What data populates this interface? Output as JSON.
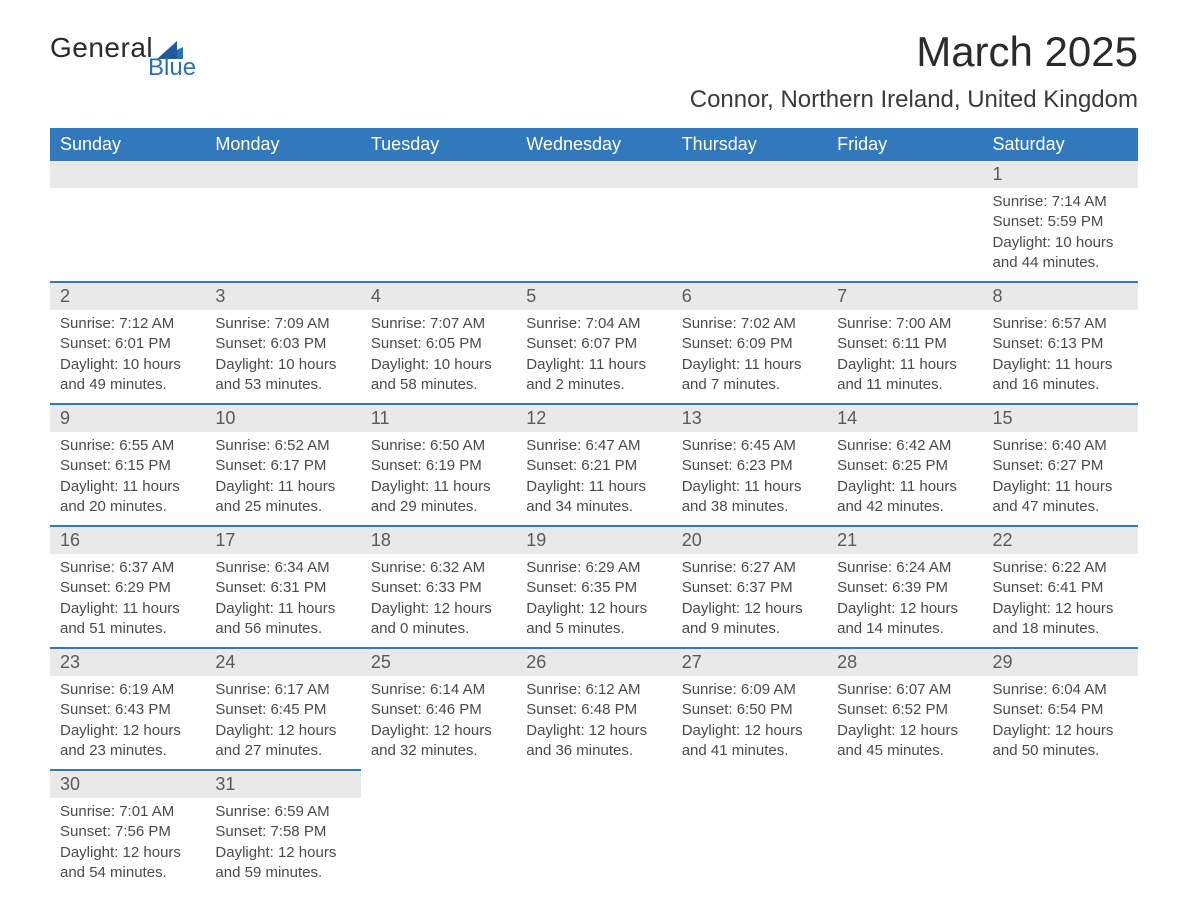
{
  "brand": {
    "name1": "General",
    "name2": "Blue",
    "logo_color": "#2b6fb5"
  },
  "header": {
    "month_title": "March 2025",
    "location": "Connor, Northern Ireland, United Kingdom"
  },
  "colors": {
    "header_bg": "#3278bc",
    "daynum_bg": "#e9e9e9",
    "row_divider": "#3278bc"
  },
  "day_headers": [
    "Sunday",
    "Monday",
    "Tuesday",
    "Wednesday",
    "Thursday",
    "Friday",
    "Saturday"
  ],
  "weeks": [
    [
      null,
      null,
      null,
      null,
      null,
      null,
      {
        "day": "1",
        "sunrise": "Sunrise: 7:14 AM",
        "sunset": "Sunset: 5:59 PM",
        "daylight": "Daylight: 10 hours and 44 minutes."
      }
    ],
    [
      {
        "day": "2",
        "sunrise": "Sunrise: 7:12 AM",
        "sunset": "Sunset: 6:01 PM",
        "daylight": "Daylight: 10 hours and 49 minutes."
      },
      {
        "day": "3",
        "sunrise": "Sunrise: 7:09 AM",
        "sunset": "Sunset: 6:03 PM",
        "daylight": "Daylight: 10 hours and 53 minutes."
      },
      {
        "day": "4",
        "sunrise": "Sunrise: 7:07 AM",
        "sunset": "Sunset: 6:05 PM",
        "daylight": "Daylight: 10 hours and 58 minutes."
      },
      {
        "day": "5",
        "sunrise": "Sunrise: 7:04 AM",
        "sunset": "Sunset: 6:07 PM",
        "daylight": "Daylight: 11 hours and 2 minutes."
      },
      {
        "day": "6",
        "sunrise": "Sunrise: 7:02 AM",
        "sunset": "Sunset: 6:09 PM",
        "daylight": "Daylight: 11 hours and 7 minutes."
      },
      {
        "day": "7",
        "sunrise": "Sunrise: 7:00 AM",
        "sunset": "Sunset: 6:11 PM",
        "daylight": "Daylight: 11 hours and 11 minutes."
      },
      {
        "day": "8",
        "sunrise": "Sunrise: 6:57 AM",
        "sunset": "Sunset: 6:13 PM",
        "daylight": "Daylight: 11 hours and 16 minutes."
      }
    ],
    [
      {
        "day": "9",
        "sunrise": "Sunrise: 6:55 AM",
        "sunset": "Sunset: 6:15 PM",
        "daylight": "Daylight: 11 hours and 20 minutes."
      },
      {
        "day": "10",
        "sunrise": "Sunrise: 6:52 AM",
        "sunset": "Sunset: 6:17 PM",
        "daylight": "Daylight: 11 hours and 25 minutes."
      },
      {
        "day": "11",
        "sunrise": "Sunrise: 6:50 AM",
        "sunset": "Sunset: 6:19 PM",
        "daylight": "Daylight: 11 hours and 29 minutes."
      },
      {
        "day": "12",
        "sunrise": "Sunrise: 6:47 AM",
        "sunset": "Sunset: 6:21 PM",
        "daylight": "Daylight: 11 hours and 34 minutes."
      },
      {
        "day": "13",
        "sunrise": "Sunrise: 6:45 AM",
        "sunset": "Sunset: 6:23 PM",
        "daylight": "Daylight: 11 hours and 38 minutes."
      },
      {
        "day": "14",
        "sunrise": "Sunrise: 6:42 AM",
        "sunset": "Sunset: 6:25 PM",
        "daylight": "Daylight: 11 hours and 42 minutes."
      },
      {
        "day": "15",
        "sunrise": "Sunrise: 6:40 AM",
        "sunset": "Sunset: 6:27 PM",
        "daylight": "Daylight: 11 hours and 47 minutes."
      }
    ],
    [
      {
        "day": "16",
        "sunrise": "Sunrise: 6:37 AM",
        "sunset": "Sunset: 6:29 PM",
        "daylight": "Daylight: 11 hours and 51 minutes."
      },
      {
        "day": "17",
        "sunrise": "Sunrise: 6:34 AM",
        "sunset": "Sunset: 6:31 PM",
        "daylight": "Daylight: 11 hours and 56 minutes."
      },
      {
        "day": "18",
        "sunrise": "Sunrise: 6:32 AM",
        "sunset": "Sunset: 6:33 PM",
        "daylight": "Daylight: 12 hours and 0 minutes."
      },
      {
        "day": "19",
        "sunrise": "Sunrise: 6:29 AM",
        "sunset": "Sunset: 6:35 PM",
        "daylight": "Daylight: 12 hours and 5 minutes."
      },
      {
        "day": "20",
        "sunrise": "Sunrise: 6:27 AM",
        "sunset": "Sunset: 6:37 PM",
        "daylight": "Daylight: 12 hours and 9 minutes."
      },
      {
        "day": "21",
        "sunrise": "Sunrise: 6:24 AM",
        "sunset": "Sunset: 6:39 PM",
        "daylight": "Daylight: 12 hours and 14 minutes."
      },
      {
        "day": "22",
        "sunrise": "Sunrise: 6:22 AM",
        "sunset": "Sunset: 6:41 PM",
        "daylight": "Daylight: 12 hours and 18 minutes."
      }
    ],
    [
      {
        "day": "23",
        "sunrise": "Sunrise: 6:19 AM",
        "sunset": "Sunset: 6:43 PM",
        "daylight": "Daylight: 12 hours and 23 minutes."
      },
      {
        "day": "24",
        "sunrise": "Sunrise: 6:17 AM",
        "sunset": "Sunset: 6:45 PM",
        "daylight": "Daylight: 12 hours and 27 minutes."
      },
      {
        "day": "25",
        "sunrise": "Sunrise: 6:14 AM",
        "sunset": "Sunset: 6:46 PM",
        "daylight": "Daylight: 12 hours and 32 minutes."
      },
      {
        "day": "26",
        "sunrise": "Sunrise: 6:12 AM",
        "sunset": "Sunset: 6:48 PM",
        "daylight": "Daylight: 12 hours and 36 minutes."
      },
      {
        "day": "27",
        "sunrise": "Sunrise: 6:09 AM",
        "sunset": "Sunset: 6:50 PM",
        "daylight": "Daylight: 12 hours and 41 minutes."
      },
      {
        "day": "28",
        "sunrise": "Sunrise: 6:07 AM",
        "sunset": "Sunset: 6:52 PM",
        "daylight": "Daylight: 12 hours and 45 minutes."
      },
      {
        "day": "29",
        "sunrise": "Sunrise: 6:04 AM",
        "sunset": "Sunset: 6:54 PM",
        "daylight": "Daylight: 12 hours and 50 minutes."
      }
    ],
    [
      {
        "day": "30",
        "sunrise": "Sunrise: 7:01 AM",
        "sunset": "Sunset: 7:56 PM",
        "daylight": "Daylight: 12 hours and 54 minutes."
      },
      {
        "day": "31",
        "sunrise": "Sunrise: 6:59 AM",
        "sunset": "Sunset: 7:58 PM",
        "daylight": "Daylight: 12 hours and 59 minutes."
      },
      null,
      null,
      null,
      null,
      null
    ]
  ]
}
